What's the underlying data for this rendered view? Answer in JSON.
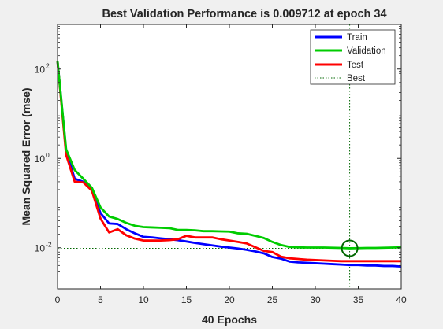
{
  "window": {
    "background": "#f0f0f0",
    "plot_background": "#ffffff"
  },
  "chart_data": {
    "type": "line",
    "title": "Best Validation Performance is 0.009712 at epoch 34",
    "xlabel": "40 Epochs",
    "ylabel": "Mean Squared Error  (mse)",
    "xlim": [
      0,
      40
    ],
    "ylim": [
      0.0012,
      1000
    ],
    "yscale": "log",
    "grid": false,
    "legend_location": "top-right",
    "x_ticks": [
      {
        "value": 0,
        "label": "0"
      },
      {
        "value": 5,
        "label": "5"
      },
      {
        "value": 10,
        "label": "10"
      },
      {
        "value": 15,
        "label": "15"
      },
      {
        "value": 20,
        "label": "20"
      },
      {
        "value": 25,
        "label": "25"
      },
      {
        "value": 30,
        "label": "30"
      },
      {
        "value": 35,
        "label": "35"
      },
      {
        "value": 40,
        "label": "40"
      }
    ],
    "y_ticks": [
      {
        "value": 0.01,
        "base": "10",
        "exp": "-2"
      },
      {
        "value": 1,
        "base": "10",
        "exp": "0"
      },
      {
        "value": 100,
        "base": "10",
        "exp": "2"
      }
    ],
    "x": [
      0,
      1,
      2,
      3,
      4,
      5,
      6,
      7,
      8,
      9,
      10,
      11,
      12,
      13,
      14,
      15,
      16,
      17,
      18,
      19,
      20,
      21,
      22,
      23,
      24,
      25,
      26,
      27,
      28,
      29,
      30,
      31,
      32,
      33,
      34,
      35,
      36,
      37,
      38,
      39,
      40
    ],
    "series": [
      {
        "name": "Train",
        "color": "#0000ff",
        "values": [
          150,
          1.5,
          0.35,
          0.3,
          0.2,
          0.06,
          0.035,
          0.034,
          0.026,
          0.021,
          0.0175,
          0.017,
          0.0162,
          0.0155,
          0.0148,
          0.0138,
          0.0128,
          0.012,
          0.0113,
          0.0106,
          0.0101,
          0.0096,
          0.009,
          0.0083,
          0.0075,
          0.0062,
          0.0057,
          0.0049,
          0.0047,
          0.0046,
          0.0045,
          0.0044,
          0.0043,
          0.0042,
          0.0041,
          0.0041,
          0.004,
          0.004,
          0.0039,
          0.0039,
          0.0038
        ]
      },
      {
        "name": "Validation",
        "color": "#00cc00",
        "values": [
          150,
          1.6,
          0.55,
          0.35,
          0.22,
          0.08,
          0.05,
          0.044,
          0.036,
          0.031,
          0.029,
          0.0285,
          0.028,
          0.0275,
          0.025,
          0.025,
          0.0245,
          0.0235,
          0.0235,
          0.0232,
          0.023,
          0.021,
          0.0205,
          0.0185,
          0.0165,
          0.0135,
          0.0115,
          0.0104,
          0.0102,
          0.0101,
          0.0101,
          0.0101,
          0.01,
          0.0099,
          0.009712,
          0.0098,
          0.0099,
          0.0099,
          0.01,
          0.0101,
          0.0102
        ]
      },
      {
        "name": "Test",
        "color": "#ff0000",
        "values": [
          150,
          1.2,
          0.3,
          0.29,
          0.19,
          0.045,
          0.022,
          0.026,
          0.019,
          0.016,
          0.0145,
          0.0145,
          0.0145,
          0.0148,
          0.0155,
          0.0185,
          0.017,
          0.017,
          0.017,
          0.0155,
          0.0145,
          0.0135,
          0.0125,
          0.0103,
          0.0085,
          0.008,
          0.0063,
          0.0058,
          0.0056,
          0.0054,
          0.0053,
          0.0052,
          0.0051,
          0.005,
          0.005,
          0.005,
          0.005,
          0.005,
          0.005,
          0.005,
          0.005
        ]
      }
    ],
    "best": {
      "name": "Best",
      "epoch": 34,
      "value": 0.009712,
      "color": "#006600"
    }
  }
}
